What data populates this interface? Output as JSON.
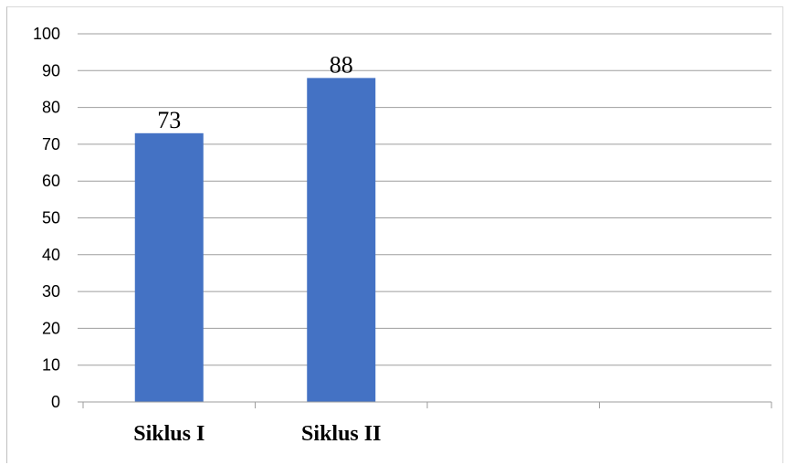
{
  "chart_data": {
    "type": "bar",
    "categories": [
      "Siklus I",
      "Siklus II",
      "",
      ""
    ],
    "values": [
      73,
      88,
      null,
      null
    ],
    "title": "",
    "xlabel": "",
    "ylabel": "",
    "ylim": [
      0,
      100
    ],
    "yticks": [
      0,
      10,
      20,
      30,
      40,
      50,
      60,
      70,
      80,
      90,
      100
    ],
    "grid": true,
    "legend": "none",
    "colors": {
      "bar": "#4472c4",
      "grid": "#9e9e9e",
      "axis": "#9e9e9e"
    }
  }
}
